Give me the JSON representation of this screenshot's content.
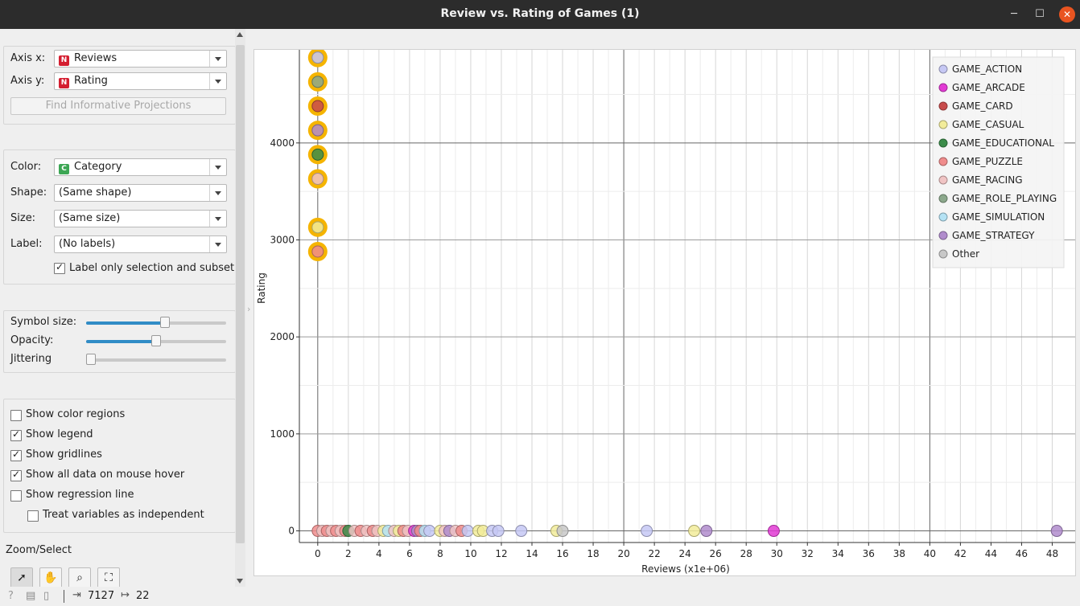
{
  "window": {
    "title": "Review vs. Rating of Games (1)"
  },
  "axes_box": {
    "x_label": "Axis x:",
    "x_value": "Reviews",
    "x_badge": "N",
    "y_label": "Axis y:",
    "y_value": "Rating",
    "y_badge": "N",
    "find_button": "Find Informative Projections"
  },
  "attr_box": {
    "color_label": "Color:",
    "color_value": "Category",
    "color_badge": "C",
    "shape_label": "Shape:",
    "shape_value": "(Same shape)",
    "size_label": "Size:",
    "size_value": "(Same size)",
    "label_label": "Label:",
    "label_value": "(No labels)",
    "label_only_selection": "Label only selection and subset"
  },
  "sliders": {
    "symbol_size": {
      "label": "Symbol size:",
      "value": 0.57
    },
    "opacity": {
      "label": "Opacity:",
      "value": 0.5
    },
    "jittering": {
      "label": "Jittering",
      "value": 0.0
    }
  },
  "options": [
    {
      "label": "Show color regions",
      "checked": false
    },
    {
      "label": "Show legend",
      "checked": true
    },
    {
      "label": "Show gridlines",
      "checked": true
    },
    {
      "label": "Show all data on mouse hover",
      "checked": true
    },
    {
      "label": "Show regression line",
      "checked": false
    },
    {
      "label": "Treat variables as independent",
      "checked": false
    }
  ],
  "zoom_select": {
    "label": "Zoom/Select",
    "tools": [
      "pointer-icon",
      "pan-hand-icon",
      "zoom-icon",
      "fit-icon"
    ]
  },
  "status": {
    "input_count": "7127",
    "output_count": "22"
  },
  "colors": {
    "GAME_ACTION": "#c6c8f4",
    "GAME_ARCADE": "#e23ad4",
    "GAME_CARD": "#c84b4b",
    "GAME_CASUAL": "#f2ec9a",
    "GAME_EDUCATIONAL": "#3c8c4a",
    "GAME_PUZZLE": "#f08c8c",
    "GAME_RACING": "#f0c4c4",
    "GAME_ROLE_PLAYING": "#8ca88c",
    "GAME_SIMULATION": "#b4e2f4",
    "GAME_STRATEGY": "#b08ccc",
    "Other": "#c8c8c8",
    "selection": "#f5b400"
  },
  "chart_data": {
    "type": "scatter",
    "title": "",
    "xlabel": "Reviews (x1e+06)",
    "ylabel": "Rating",
    "xlim": [
      -1.2,
      49.5
    ],
    "ylim": [
      -120,
      4960
    ],
    "x_ticks": [
      "0",
      "2",
      "4",
      "6",
      "8",
      "10",
      "12",
      "14",
      "16",
      "18",
      "20",
      "22",
      "24",
      "26",
      "28",
      "30",
      "32",
      "34",
      "36",
      "38",
      "40",
      "42",
      "44",
      "46",
      "48"
    ],
    "y_ticks": [
      "0",
      "1000",
      "2000",
      "3000",
      "4000"
    ],
    "grid": true,
    "legend_position": "top-right",
    "legend": [
      "GAME_ACTION",
      "GAME_ARCADE",
      "GAME_CARD",
      "GAME_CASUAL",
      "GAME_EDUCATIONAL",
      "GAME_PUZZLE",
      "GAME_RACING",
      "GAME_ROLE_PLAYING",
      "GAME_SIMULATION",
      "GAME_STRATEGY",
      "Other"
    ],
    "points": [
      {
        "x": 0,
        "y": 4880,
        "c": "GAME_ACTION",
        "sel": true
      },
      {
        "x": 0,
        "y": 4630,
        "c": "GAME_ROLE_PLAYING",
        "sel": true
      },
      {
        "x": 0,
        "y": 4380,
        "c": "GAME_CARD",
        "sel": true
      },
      {
        "x": 0,
        "y": 4130,
        "c": "GAME_STRATEGY",
        "sel": true
      },
      {
        "x": 0,
        "y": 3880,
        "c": "GAME_EDUCATIONAL",
        "sel": true
      },
      {
        "x": 0,
        "y": 3630,
        "c": "GAME_RACING",
        "sel": true
      },
      {
        "x": 0,
        "y": 3130,
        "c": "GAME_CASUAL",
        "sel": true
      },
      {
        "x": 0,
        "y": 2880,
        "c": "GAME_PUZZLE",
        "sel": true
      },
      {
        "x": 0,
        "y": 0,
        "c": "GAME_PUZZLE"
      },
      {
        "x": 0.3,
        "y": 0,
        "c": "GAME_RACING"
      },
      {
        "x": 0.6,
        "y": 0,
        "c": "GAME_PUZZLE"
      },
      {
        "x": 0.9,
        "y": 0,
        "c": "GAME_RACING"
      },
      {
        "x": 1.2,
        "y": 0,
        "c": "GAME_PUZZLE"
      },
      {
        "x": 1.5,
        "y": 0,
        "c": "GAME_RACING"
      },
      {
        "x": 1.8,
        "y": 0,
        "c": "GAME_PUZZLE"
      },
      {
        "x": 2.0,
        "y": 0,
        "c": "GAME_EDUCATIONAL"
      },
      {
        "x": 2.4,
        "y": 0,
        "c": "GAME_RACING"
      },
      {
        "x": 2.8,
        "y": 0,
        "c": "GAME_PUZZLE"
      },
      {
        "x": 3.2,
        "y": 0,
        "c": "GAME_RACING"
      },
      {
        "x": 3.6,
        "y": 0,
        "c": "GAME_PUZZLE"
      },
      {
        "x": 3.9,
        "y": 0,
        "c": "GAME_RACING"
      },
      {
        "x": 4.3,
        "y": 0,
        "c": "GAME_CASUAL"
      },
      {
        "x": 4.6,
        "y": 0,
        "c": "GAME_SIMULATION"
      },
      {
        "x": 5.0,
        "y": 0,
        "c": "GAME_RACING"
      },
      {
        "x": 5.3,
        "y": 0,
        "c": "GAME_CASUAL"
      },
      {
        "x": 5.6,
        "y": 0,
        "c": "GAME_PUZZLE"
      },
      {
        "x": 5.9,
        "y": 0,
        "c": "GAME_RACING"
      },
      {
        "x": 6.3,
        "y": 0,
        "c": "GAME_ARCADE"
      },
      {
        "x": 6.5,
        "y": 0,
        "c": "GAME_STRATEGY"
      },
      {
        "x": 6.7,
        "y": 0,
        "c": "GAME_PUZZLE"
      },
      {
        "x": 7.0,
        "y": 0,
        "c": "GAME_SIMULATION"
      },
      {
        "x": 7.3,
        "y": 0,
        "c": "GAME_ACTION"
      },
      {
        "x": 8.0,
        "y": 0,
        "c": "GAME_CASUAL"
      },
      {
        "x": 8.3,
        "y": 0,
        "c": "GAME_RACING"
      },
      {
        "x": 8.6,
        "y": 0,
        "c": "GAME_STRATEGY"
      },
      {
        "x": 9.0,
        "y": 0,
        "c": "GAME_RACING"
      },
      {
        "x": 9.4,
        "y": 0,
        "c": "GAME_PUZZLE"
      },
      {
        "x": 9.8,
        "y": 0,
        "c": "GAME_ACTION"
      },
      {
        "x": 10.5,
        "y": 0,
        "c": "GAME_CASUAL"
      },
      {
        "x": 10.8,
        "y": 0,
        "c": "GAME_CASUAL"
      },
      {
        "x": 11.4,
        "y": 0,
        "c": "GAME_ACTION"
      },
      {
        "x": 11.8,
        "y": 0,
        "c": "GAME_ACTION"
      },
      {
        "x": 13.3,
        "y": 0,
        "c": "GAME_ACTION"
      },
      {
        "x": 15.6,
        "y": 0,
        "c": "GAME_CASUAL"
      },
      {
        "x": 16.0,
        "y": 0,
        "c": "Other"
      },
      {
        "x": 21.5,
        "y": 0,
        "c": "GAME_ACTION"
      },
      {
        "x": 24.6,
        "y": 0,
        "c": "GAME_CASUAL"
      },
      {
        "x": 25.4,
        "y": 0,
        "c": "GAME_STRATEGY"
      },
      {
        "x": 29.8,
        "y": 0,
        "c": "GAME_ARCADE"
      },
      {
        "x": 48.3,
        "y": 0,
        "c": "GAME_STRATEGY"
      }
    ]
  }
}
